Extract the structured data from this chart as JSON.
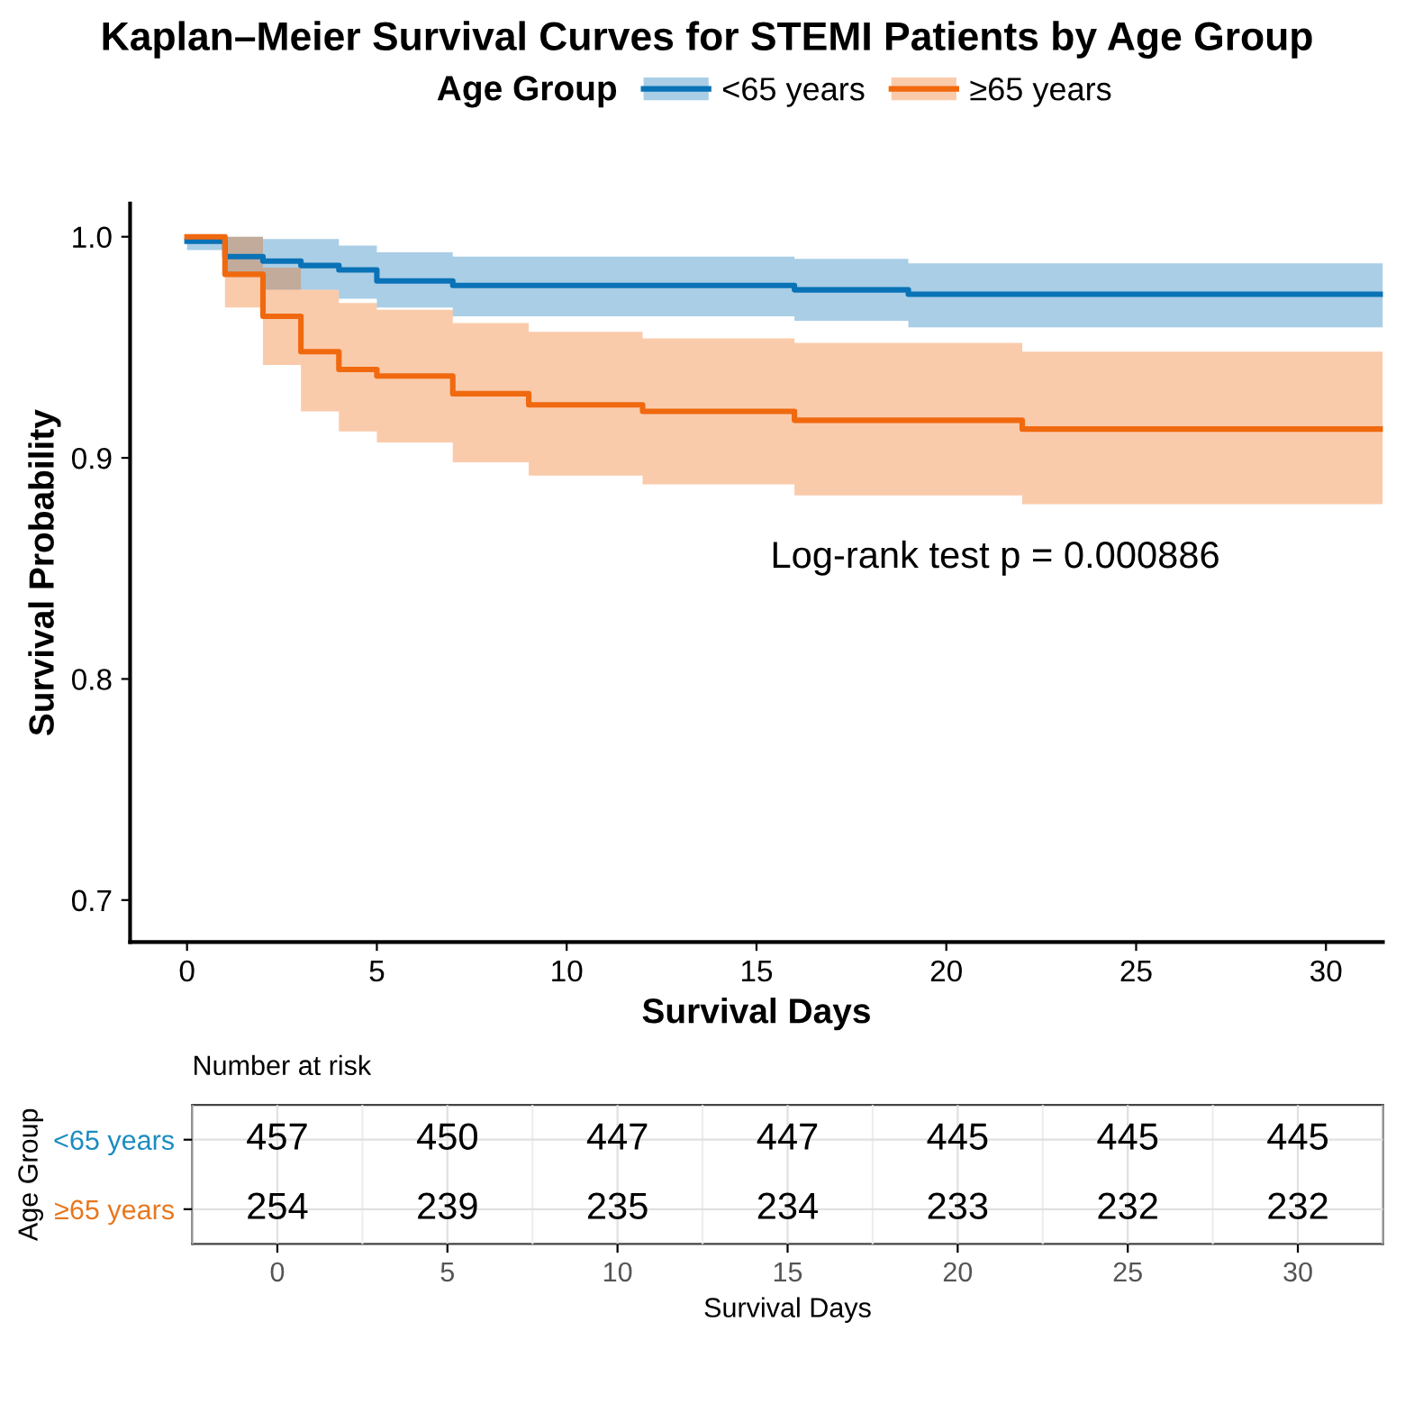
{
  "chart_data": [
    {
      "type": "step",
      "title": "Kaplan–Meier Survival Curves for STEMI Patients by Age Group",
      "xlabel": "Survival Days",
      "ylabel": "Survival Probability",
      "legend_title": "Age Group",
      "legend": "top",
      "series": [
        {
          "name": "<65 years",
          "color": "#0a72b6",
          "x": [
            0,
            1,
            2,
            3,
            4,
            5,
            7,
            16,
            19,
            31.5
          ],
          "values": [
            0.998,
            0.991,
            0.989,
            0.987,
            0.985,
            0.98,
            0.978,
            0.976,
            0.974,
            0.974
          ],
          "upper": [
            1.0,
            1.0,
            0.999,
            0.999,
            0.996,
            0.993,
            0.991,
            0.99,
            0.988,
            0.988
          ],
          "lower": [
            0.994,
            0.983,
            0.976,
            0.976,
            0.972,
            0.968,
            0.964,
            0.962,
            0.959,
            0.959
          ]
        },
        {
          "name": "≥65 years",
          "color": "#f0690f",
          "x": [
            0,
            1,
            2,
            3,
            4,
            5,
            7,
            9,
            12,
            16,
            22,
            31.5
          ],
          "values": [
            1.0,
            0.983,
            0.964,
            0.948,
            0.94,
            0.937,
            0.929,
            0.924,
            0.921,
            0.917,
            0.913,
            0.913
          ],
          "upper": [
            1.0,
            1.0,
            0.986,
            0.976,
            0.97,
            0.967,
            0.961,
            0.957,
            0.954,
            0.952,
            0.948,
            0.948
          ],
          "lower": [
            1.0,
            0.968,
            0.942,
            0.921,
            0.912,
            0.907,
            0.898,
            0.892,
            0.888,
            0.883,
            0.879,
            0.879
          ]
        }
      ],
      "xlim": [
        -1.5,
        31.5
      ],
      "xticks": [
        0,
        5,
        10,
        15,
        20,
        25,
        30
      ],
      "ylim": [
        0.681,
        1.015
      ],
      "yticks": [
        0.7,
        0.8,
        0.9,
        {
          "value": 1,
          "label": "1.0"
        }
      ],
      "annotations": [
        "Log-rank test p = 0.000886"
      ],
      "grid": false
    },
    {
      "type": "heatmap",
      "title": "Number at risk",
      "xlabel": "Survival Days",
      "ylabel": "Age Group",
      "categories": [
        "0",
        "5",
        "10",
        "15",
        "20",
        "25",
        "30"
      ],
      "y_categories": [
        "<65 years",
        "≥65 years"
      ],
      "colors": [
        "#1a8cc0",
        "#e8771e"
      ],
      "cells": [
        [
          457,
          450,
          447,
          447,
          445,
          445,
          445
        ],
        [
          254,
          239,
          235,
          234,
          233,
          232,
          232
        ]
      ],
      "data_labels": true,
      "grid": true
    }
  ]
}
